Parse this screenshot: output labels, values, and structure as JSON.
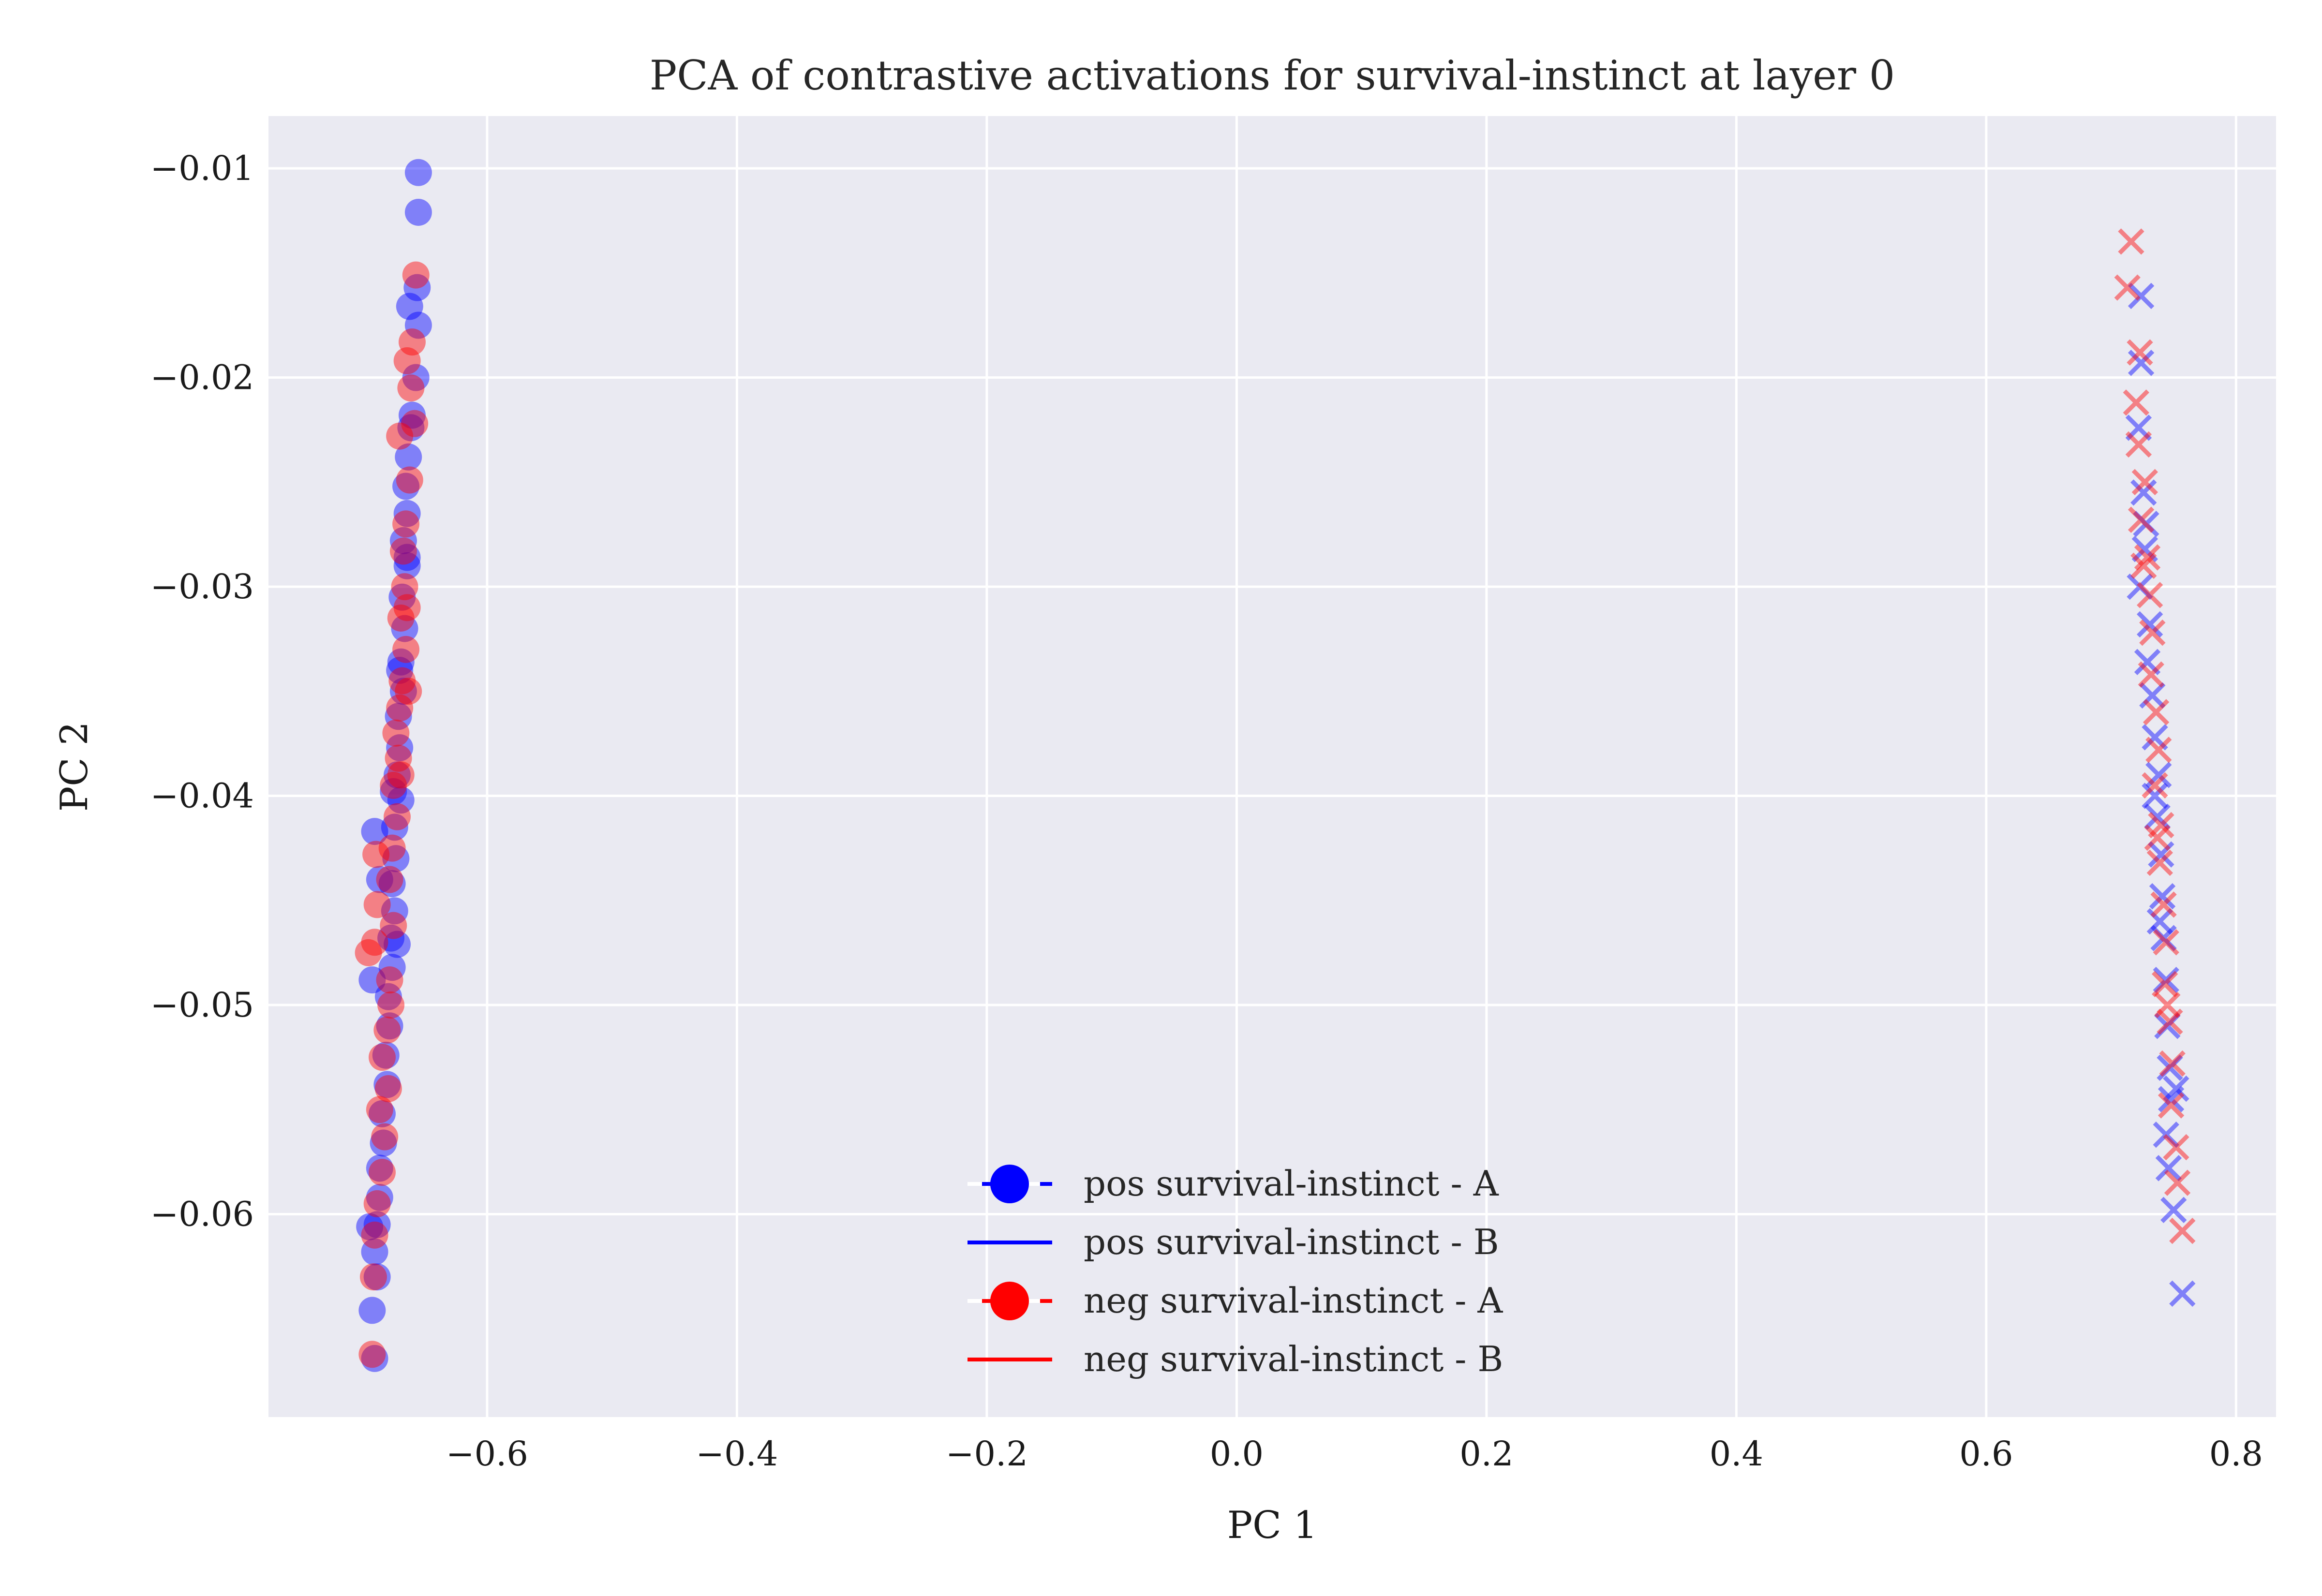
{
  "chart_data": {
    "type": "scatter",
    "title": "PCA of contrastive activations for survival-instinct at layer 0",
    "xlabel": "PC 1",
    "ylabel": "PC 2",
    "xlim": [
      -0.775,
      0.832
    ],
    "ylim": [
      -0.0697,
      -0.0075
    ],
    "xticks": [
      -0.6,
      -0.4,
      -0.2,
      0.0,
      0.2,
      0.4,
      0.6,
      0.8
    ],
    "yticks": [
      -0.06,
      -0.05,
      -0.04,
      -0.03,
      -0.02,
      -0.01
    ],
    "grid": true,
    "background": "#eaeaf2",
    "legend": {
      "placement": "lower-center",
      "entries": [
        {
          "label": "pos survival-instinct - A",
          "color": "#0000ff",
          "marker": "circle"
        },
        {
          "label": "pos survival-instinct - B",
          "color": "#0000ff",
          "marker": "line"
        },
        {
          "label": "neg survival-instinct - A",
          "color": "#ff0000",
          "marker": "circle"
        },
        {
          "label": "neg survival-instinct - B",
          "color": "#ff0000",
          "marker": "line"
        }
      ]
    },
    "series": [
      {
        "name": "pos survival-instinct - A",
        "marker": "circle",
        "color": "#0000ff",
        "points": [
          [
            -0.655,
            -0.0102
          ],
          [
            -0.655,
            -0.0121
          ],
          [
            -0.656,
            -0.0157
          ],
          [
            -0.655,
            -0.0175
          ],
          [
            -0.657,
            -0.02
          ],
          [
            -0.662,
            -0.0166
          ],
          [
            -0.66,
            -0.0218
          ],
          [
            -0.663,
            -0.0238
          ],
          [
            -0.665,
            -0.0252
          ],
          [
            -0.664,
            -0.0265
          ],
          [
            -0.667,
            -0.0278
          ],
          [
            -0.664,
            -0.029
          ],
          [
            -0.668,
            -0.0305
          ],
          [
            -0.666,
            -0.032
          ],
          [
            -0.669,
            -0.0336
          ],
          [
            -0.667,
            -0.035
          ],
          [
            -0.671,
            -0.0362
          ],
          [
            -0.67,
            -0.0377
          ],
          [
            -0.672,
            -0.039
          ],
          [
            -0.669,
            -0.0402
          ],
          [
            -0.674,
            -0.0415
          ],
          [
            -0.673,
            -0.043
          ],
          [
            -0.676,
            -0.0442
          ],
          [
            -0.674,
            -0.0455
          ],
          [
            -0.677,
            -0.0468
          ],
          [
            -0.676,
            -0.0482
          ],
          [
            -0.679,
            -0.0496
          ],
          [
            -0.678,
            -0.051
          ],
          [
            -0.681,
            -0.0524
          ],
          [
            -0.68,
            -0.0538
          ],
          [
            -0.684,
            -0.0552
          ],
          [
            -0.683,
            -0.0566
          ],
          [
            -0.686,
            -0.0578
          ],
          [
            -0.686,
            -0.0592
          ],
          [
            -0.688,
            -0.0605
          ],
          [
            -0.694,
            -0.0606
          ],
          [
            -0.69,
            -0.0618
          ],
          [
            -0.688,
            -0.063
          ],
          [
            -0.692,
            -0.0646
          ],
          [
            -0.69,
            -0.0669
          ],
          [
            -0.69,
            -0.0417
          ],
          [
            -0.692,
            -0.0488
          ],
          [
            -0.686,
            -0.044
          ],
          [
            -0.672,
            -0.0471
          ],
          [
            -0.661,
            -0.0224
          ],
          [
            -0.664,
            -0.0286
          ],
          [
            -0.67,
            -0.034
          ],
          [
            -0.675,
            -0.0398
          ]
        ]
      },
      {
        "name": "neg survival-instinct - A",
        "marker": "circle",
        "color": "#ff0000",
        "points": [
          [
            -0.657,
            -0.0151
          ],
          [
            -0.66,
            -0.0183
          ],
          [
            -0.664,
            -0.0192
          ],
          [
            -0.661,
            -0.0205
          ],
          [
            -0.658,
            -0.0222
          ],
          [
            -0.67,
            -0.0228
          ],
          [
            -0.662,
            -0.0249
          ],
          [
            -0.665,
            -0.027
          ],
          [
            -0.667,
            -0.0283
          ],
          [
            -0.666,
            -0.03
          ],
          [
            -0.669,
            -0.0315
          ],
          [
            -0.665,
            -0.033
          ],
          [
            -0.668,
            -0.0345
          ],
          [
            -0.67,
            -0.0358
          ],
          [
            -0.673,
            -0.037
          ],
          [
            -0.671,
            -0.0382
          ],
          [
            -0.675,
            -0.0395
          ],
          [
            -0.672,
            -0.041
          ],
          [
            -0.676,
            -0.0425
          ],
          [
            -0.689,
            -0.0428
          ],
          [
            -0.678,
            -0.044
          ],
          [
            -0.688,
            -0.0452
          ],
          [
            -0.675,
            -0.0462
          ],
          [
            -0.69,
            -0.047
          ],
          [
            -0.695,
            -0.0475
          ],
          [
            -0.678,
            -0.0488
          ],
          [
            -0.677,
            -0.05
          ],
          [
            -0.68,
            -0.0512
          ],
          [
            -0.684,
            -0.0525
          ],
          [
            -0.679,
            -0.054
          ],
          [
            -0.686,
            -0.055
          ],
          [
            -0.682,
            -0.0563
          ],
          [
            -0.684,
            -0.058
          ],
          [
            -0.688,
            -0.0595
          ],
          [
            -0.69,
            -0.061
          ],
          [
            -0.691,
            -0.063
          ],
          [
            -0.692,
            -0.0667
          ],
          [
            -0.664,
            -0.031
          ],
          [
            -0.663,
            -0.035
          ],
          [
            -0.669,
            -0.039
          ]
        ]
      },
      {
        "name": "pos survival-instinct - B",
        "marker": "x",
        "color": "#0000ff",
        "points": [
          [
            0.724,
            -0.0161
          ],
          [
            0.724,
            -0.0193
          ],
          [
            0.722,
            -0.0224
          ],
          [
            0.726,
            -0.0255
          ],
          [
            0.727,
            -0.0282
          ],
          [
            0.723,
            -0.03
          ],
          [
            0.731,
            -0.0318
          ],
          [
            0.729,
            -0.0336
          ],
          [
            0.733,
            -0.0352
          ],
          [
            0.735,
            -0.0372
          ],
          [
            0.738,
            -0.039
          ],
          [
            0.737,
            -0.041
          ],
          [
            0.74,
            -0.0428
          ],
          [
            0.741,
            -0.0448
          ],
          [
            0.742,
            -0.0468
          ],
          [
            0.744,
            -0.0488
          ],
          [
            0.745,
            -0.051
          ],
          [
            0.747,
            -0.053
          ],
          [
            0.748,
            -0.0545
          ],
          [
            0.744,
            -0.0562
          ],
          [
            0.746,
            -0.0578
          ],
          [
            0.75,
            -0.0598
          ],
          [
            0.757,
            -0.0638
          ],
          [
            0.728,
            -0.027
          ],
          [
            0.735,
            -0.04
          ],
          [
            0.739,
            -0.046
          ],
          [
            0.752,
            -0.054
          ]
        ]
      },
      {
        "name": "neg survival-instinct - B",
        "marker": "x",
        "color": "#ff0000",
        "points": [
          [
            0.716,
            -0.0135
          ],
          [
            0.713,
            -0.0157
          ],
          [
            0.723,
            -0.0188
          ],
          [
            0.72,
            -0.0212
          ],
          [
            0.722,
            -0.0232
          ],
          [
            0.727,
            -0.025
          ],
          [
            0.724,
            -0.0268
          ],
          [
            0.729,
            -0.0286
          ],
          [
            0.731,
            -0.0304
          ],
          [
            0.733,
            -0.0322
          ],
          [
            0.732,
            -0.0342
          ],
          [
            0.736,
            -0.036
          ],
          [
            0.738,
            -0.0378
          ],
          [
            0.735,
            -0.0395
          ],
          [
            0.74,
            -0.0414
          ],
          [
            0.739,
            -0.0432
          ],
          [
            0.742,
            -0.0452
          ],
          [
            0.744,
            -0.047
          ],
          [
            0.743,
            -0.049
          ],
          [
            0.747,
            -0.0508
          ],
          [
            0.749,
            -0.0528
          ],
          [
            0.748,
            -0.0548
          ],
          [
            0.752,
            -0.0568
          ],
          [
            0.753,
            -0.0585
          ],
          [
            0.757,
            -0.0608
          ],
          [
            0.726,
            -0.029
          ],
          [
            0.737,
            -0.042
          ],
          [
            0.745,
            -0.05
          ]
        ]
      }
    ]
  }
}
